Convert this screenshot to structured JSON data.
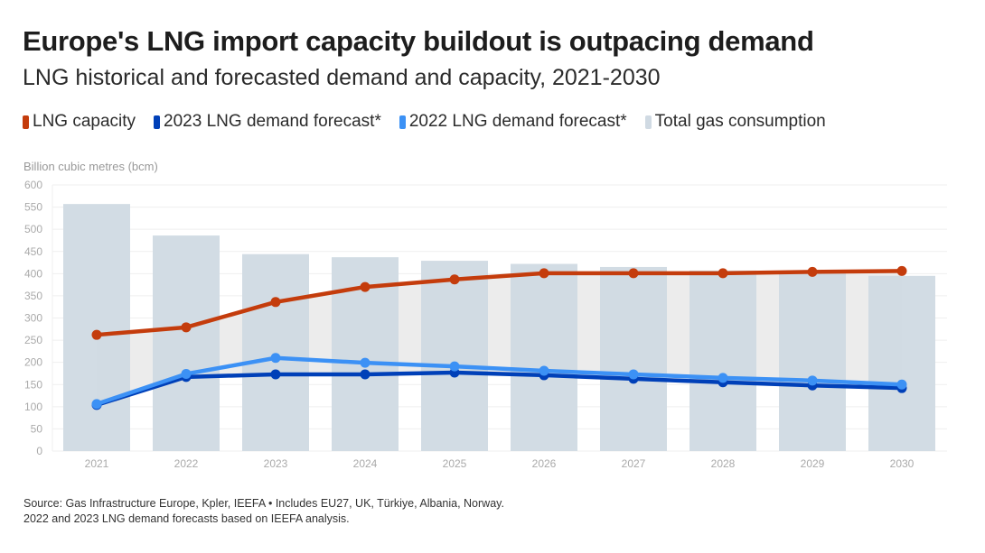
{
  "header": {
    "title": "Europe's LNG import capacity buildout is outpacing demand",
    "subtitle": "LNG historical and forecasted demand and capacity, 2021-2030"
  },
  "legend": [
    {
      "label": "LNG capacity",
      "color": "#c43c0c"
    },
    {
      "label": "2023 LNG demand forecast*",
      "color": "#0040b8"
    },
    {
      "label": "2022 LNG demand forecast*",
      "color": "#3c91f5"
    },
    {
      "label": "Total gas consumption",
      "color": "#d0dae3"
    }
  ],
  "footer": {
    "line1": "Source: Gas Infrastructure Europe, Kpler, IEEFA • Includes EU27, UK, Türkiye, Albania, Norway.",
    "line2": "2022 and 2023 LNG demand forecasts based on IEEFA analysis."
  },
  "chart_data": {
    "type": "bar",
    "title": "Europe's LNG import capacity buildout is outpacing demand",
    "subtitle": "LNG historical and forecasted demand and capacity, 2021-2030",
    "xlabel": "",
    "ylabel": "Billion cubic metres (bcm)",
    "ylim": [
      0,
      600
    ],
    "yticks": [
      0,
      50,
      100,
      150,
      200,
      250,
      300,
      350,
      400,
      450,
      500,
      550,
      600
    ],
    "grid": true,
    "legend_position": "top-left",
    "categories": [
      "2021",
      "2022",
      "2023",
      "2024",
      "2025",
      "2026",
      "2027",
      "2028",
      "2029",
      "2030"
    ],
    "series": [
      {
        "name": "Total gas consumption",
        "type": "bar",
        "color": "#d0dae3",
        "values": [
          557,
          486,
          444,
          437,
          429,
          422,
          415,
          407,
          401,
          395
        ]
      },
      {
        "name": "LNG capacity",
        "type": "line",
        "color": "#c43c0c",
        "values": [
          262,
          279,
          336,
          370,
          387,
          401,
          401,
          401,
          404,
          406
        ]
      },
      {
        "name": "2022 LNG demand forecast*",
        "type": "line",
        "color": "#3c91f5",
        "values": [
          106,
          174,
          210,
          199,
          191,
          181,
          173,
          165,
          159,
          150
        ]
      },
      {
        "name": "2023 LNG demand forecast*",
        "type": "line",
        "color": "#0040b8",
        "values": [
          104,
          167,
          173,
          173,
          177,
          171,
          163,
          155,
          148,
          142
        ]
      }
    ],
    "shaded_area": {
      "between": [
        "LNG capacity",
        "2023 LNG demand forecast*"
      ],
      "color": "#ececec"
    }
  }
}
